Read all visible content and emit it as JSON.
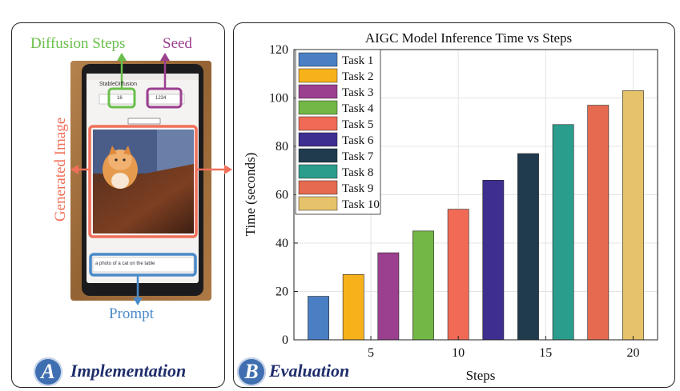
{
  "panel_a": {
    "badge": "A",
    "label": "Implementation",
    "annotations": {
      "diffusion_steps": "Diffusion Steps",
      "seed": "Seed",
      "generated_image": "Generated Image",
      "prompt": "Prompt"
    },
    "phone_ui": {
      "app_title": "StableDiffusion",
      "steps_value": "16",
      "seed_value": "1234",
      "prompt_text": "a photo of a cat on the table"
    },
    "colors": {
      "diffusion_steps": "#6abf4b",
      "seed": "#9b3f8f",
      "generated_image": "#f0705a",
      "prompt": "#4a8ac9"
    }
  },
  "panel_b": {
    "badge": "B",
    "label": "Evaluation"
  },
  "chart_data": {
    "type": "bar",
    "title": "AIGC Model Inference Time vs Steps",
    "xlabel": "Steps",
    "ylabel": "Time (seconds)",
    "x": [
      2,
      4,
      6,
      8,
      10,
      12,
      14,
      16,
      18,
      20
    ],
    "values": [
      18,
      27,
      36,
      45,
      54,
      66,
      77,
      89,
      97,
      103
    ],
    "series_names": [
      "Task 1",
      "Task 2",
      "Task 3",
      "Task 4",
      "Task 5",
      "Task 6",
      "Task 7",
      "Task 8",
      "Task 9",
      "Task 10"
    ],
    "colors": [
      "#4a7fc4",
      "#f7b21b",
      "#9b3f8f",
      "#73b746",
      "#f06a55",
      "#3d2e8f",
      "#1f3b4d",
      "#2a9d8c",
      "#e56a4f",
      "#e6c36a"
    ],
    "xticks": [
      5,
      10,
      15,
      20
    ],
    "yticks": [
      0,
      20,
      40,
      60,
      80,
      100,
      120
    ],
    "xlim": [
      0.6,
      21.4
    ],
    "ylim": [
      0,
      120
    ],
    "grid": true,
    "legend": "top-left"
  }
}
